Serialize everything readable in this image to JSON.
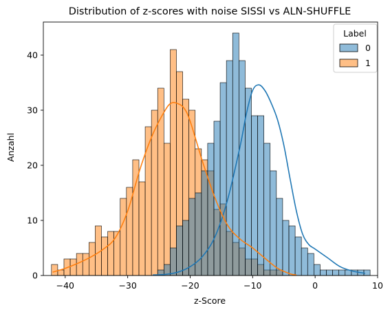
{
  "chart_data": {
    "type": "histogram",
    "title": "Distribution of z-scores with noise SISSI vs ALN-SHUFFLE",
    "xlabel": "z-Score",
    "ylabel": "Anzahl",
    "xlim": [
      -43.5,
      10
    ],
    "ylim": [
      0,
      46
    ],
    "x_ticks": [
      -40,
      -30,
      -20,
      -10,
      0,
      10
    ],
    "y_ticks": [
      0,
      10,
      20,
      30,
      40
    ],
    "grid": false,
    "legend": {
      "title": "Label",
      "placement": "top-right",
      "entries": [
        "0",
        "1"
      ]
    },
    "bin_start": -42.2,
    "bin_width": 1.0,
    "series": [
      {
        "name": "0",
        "color": "#1f77b4",
        "counts": [
          0,
          0,
          0,
          0,
          0,
          0,
          0,
          0,
          0,
          0,
          0,
          0,
          0,
          0,
          0,
          0,
          0,
          1,
          2,
          5,
          9,
          10,
          14,
          15,
          19,
          24,
          28,
          35,
          39,
          44,
          39,
          34,
          29,
          29,
          24,
          19,
          14,
          10,
          9,
          7,
          5,
          4,
          2,
          1,
          1,
          1,
          1,
          1,
          1,
          1,
          1
        ],
        "kde": [
          [
            -26,
            0.1
          ],
          [
            -24,
            0.2
          ],
          [
            -22,
            0.6
          ],
          [
            -20,
            1.6
          ],
          [
            -18,
            3.5
          ],
          [
            -16,
            7.1
          ],
          [
            -14,
            13.8
          ],
          [
            -12,
            23.5
          ],
          [
            -11,
            29.4
          ],
          [
            -10,
            33.6
          ],
          [
            -9,
            34.6
          ],
          [
            -8,
            33.5
          ],
          [
            -7,
            31.2
          ],
          [
            -6,
            28.2
          ],
          [
            -5,
            23.6
          ],
          [
            -4,
            17.5
          ],
          [
            -3,
            11.7
          ],
          [
            -2,
            7.5
          ],
          [
            -1,
            5.6
          ],
          [
            0,
            4.8
          ],
          [
            2,
            3.2
          ],
          [
            4,
            1.6
          ],
          [
            6,
            0.8
          ],
          [
            8,
            0.4
          ]
        ]
      },
      {
        "name": "1",
        "color": "#ff7f0e",
        "counts": [
          2,
          1,
          3,
          3,
          4,
          4,
          6,
          9,
          7,
          8,
          8,
          14,
          16,
          21,
          17,
          27,
          30,
          34,
          24,
          41,
          37,
          32,
          30,
          23,
          21,
          19,
          12,
          13,
          8,
          6,
          5,
          3,
          3,
          2,
          1,
          1,
          1,
          0,
          0,
          0,
          0,
          0,
          0,
          0,
          0,
          0,
          0,
          0,
          0,
          0,
          0
        ],
        "kde": [
          [
            -42,
            0.6
          ],
          [
            -40,
            1.3
          ],
          [
            -38,
            2.2
          ],
          [
            -36,
            3.3
          ],
          [
            -34,
            4.7
          ],
          [
            -32,
            6.8
          ],
          [
            -30,
            11.7
          ],
          [
            -28,
            19.4
          ],
          [
            -26,
            25.6
          ],
          [
            -24,
            30.0
          ],
          [
            -23,
            31.3
          ],
          [
            -22,
            31.2
          ],
          [
            -21,
            30.4
          ],
          [
            -20,
            28.0
          ],
          [
            -18,
            20.6
          ],
          [
            -16,
            14.0
          ],
          [
            -14,
            9.1
          ],
          [
            -12,
            6.6
          ],
          [
            -10,
            5.0
          ],
          [
            -8,
            3.1
          ],
          [
            -6,
            1.3
          ],
          [
            -4,
            0.3
          ],
          [
            -3,
            0.1
          ]
        ]
      }
    ]
  }
}
